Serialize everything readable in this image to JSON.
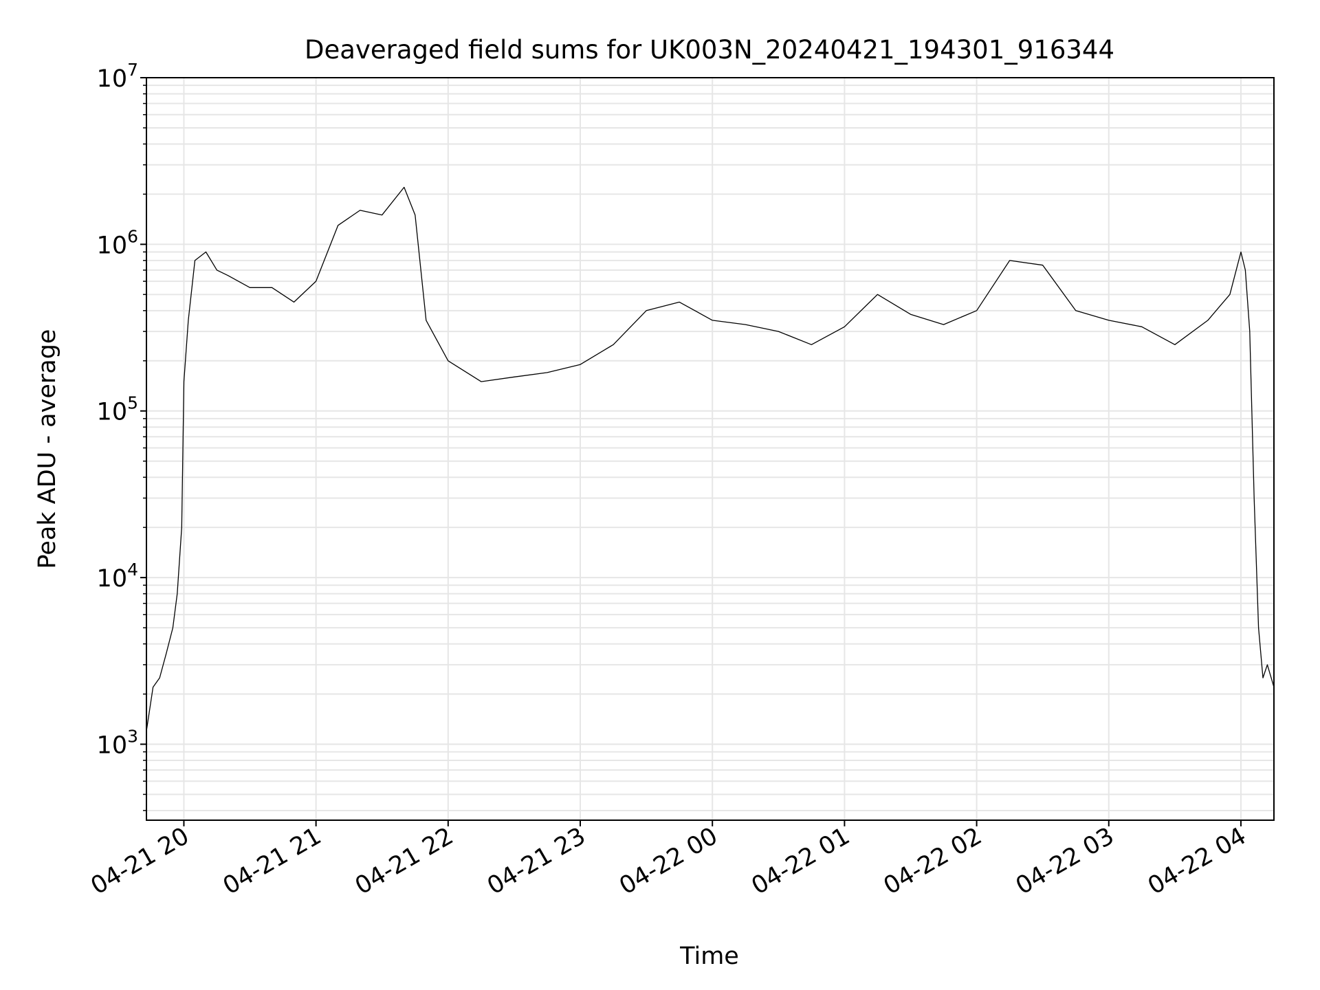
{
  "chart_data": {
    "type": "line",
    "title": "Deaveraged field sums for UK003N_20240421_194301_916344",
    "xlabel": "Time",
    "ylabel": "Peak ADU - average",
    "yscale": "log",
    "grid": true,
    "line_color": "#000000",
    "grid_color": "#e6e6e6",
    "xlim": [
      "2024-04-21 19:43",
      "2024-04-22 04:15"
    ],
    "ylim": [
      350,
      10000000
    ],
    "x_ticks": [
      {
        "value": "2024-04-21 20:00",
        "label": "04-21 20"
      },
      {
        "value": "2024-04-21 21:00",
        "label": "04-21 21"
      },
      {
        "value": "2024-04-21 22:00",
        "label": "04-21 22"
      },
      {
        "value": "2024-04-21 23:00",
        "label": "04-21 23"
      },
      {
        "value": "2024-04-22 00:00",
        "label": "04-22 00"
      },
      {
        "value": "2024-04-22 01:00",
        "label": "04-22 01"
      },
      {
        "value": "2024-04-22 02:00",
        "label": "04-22 02"
      },
      {
        "value": "2024-04-22 03:00",
        "label": "04-22 03"
      },
      {
        "value": "2024-04-22 04:00",
        "label": "04-22 04"
      }
    ],
    "y_ticks": [
      {
        "value": 1000,
        "base": "10",
        "exp": "3"
      },
      {
        "value": 10000,
        "base": "10",
        "exp": "4"
      },
      {
        "value": 100000,
        "base": "10",
        "exp": "5"
      },
      {
        "value": 1000000,
        "base": "10",
        "exp": "6"
      },
      {
        "value": 10000000,
        "base": "10",
        "exp": "7"
      }
    ],
    "series": [
      {
        "x": [
          "2024-04-21 19:43",
          "2024-04-21 19:46",
          "2024-04-21 19:49",
          "2024-04-21 19:52",
          "2024-04-21 19:55",
          "2024-04-21 19:57",
          "2024-04-21 19:59",
          "2024-04-21 20:00",
          "2024-04-21 20:02",
          "2024-04-21 20:05",
          "2024-04-21 20:10",
          "2024-04-21 20:15",
          "2024-04-21 20:20",
          "2024-04-21 20:30",
          "2024-04-21 20:40",
          "2024-04-21 20:50",
          "2024-04-21 21:00",
          "2024-04-21 21:10",
          "2024-04-21 21:20",
          "2024-04-21 21:30",
          "2024-04-21 21:40",
          "2024-04-21 21:45",
          "2024-04-21 21:50",
          "2024-04-21 22:00",
          "2024-04-21 22:15",
          "2024-04-21 22:30",
          "2024-04-21 22:45",
          "2024-04-21 23:00",
          "2024-04-21 23:15",
          "2024-04-21 23:30",
          "2024-04-21 23:45",
          "2024-04-22 00:00",
          "2024-04-22 00:15",
          "2024-04-22 00:30",
          "2024-04-22 00:45",
          "2024-04-22 01:00",
          "2024-04-22 01:15",
          "2024-04-22 01:30",
          "2024-04-22 01:45",
          "2024-04-22 02:00",
          "2024-04-22 02:15",
          "2024-04-22 02:30",
          "2024-04-22 02:45",
          "2024-04-22 03:00",
          "2024-04-22 03:15",
          "2024-04-22 03:30",
          "2024-04-22 03:45",
          "2024-04-22 03:55",
          "2024-04-22 04:00",
          "2024-04-22 04:02",
          "2024-04-22 04:04",
          "2024-04-22 04:06",
          "2024-04-22 04:08",
          "2024-04-22 04:10",
          "2024-04-22 04:12",
          "2024-04-22 04:15"
        ],
        "y": [
          1200,
          2200,
          2500,
          3500,
          5000,
          8000,
          20000,
          150000,
          350000,
          800000,
          900000,
          700000,
          650000,
          550000,
          550000,
          450000,
          600000,
          1300000,
          1600000,
          1500000,
          2200000,
          1500000,
          350000,
          200000,
          150000,
          160000,
          170000,
          190000,
          250000,
          400000,
          450000,
          350000,
          330000,
          300000,
          250000,
          320000,
          500000,
          380000,
          330000,
          400000,
          800000,
          750000,
          400000,
          350000,
          320000,
          250000,
          350000,
          500000,
          900000,
          700000,
          300000,
          30000,
          5000,
          2500,
          3000,
          2200
        ]
      }
    ]
  }
}
